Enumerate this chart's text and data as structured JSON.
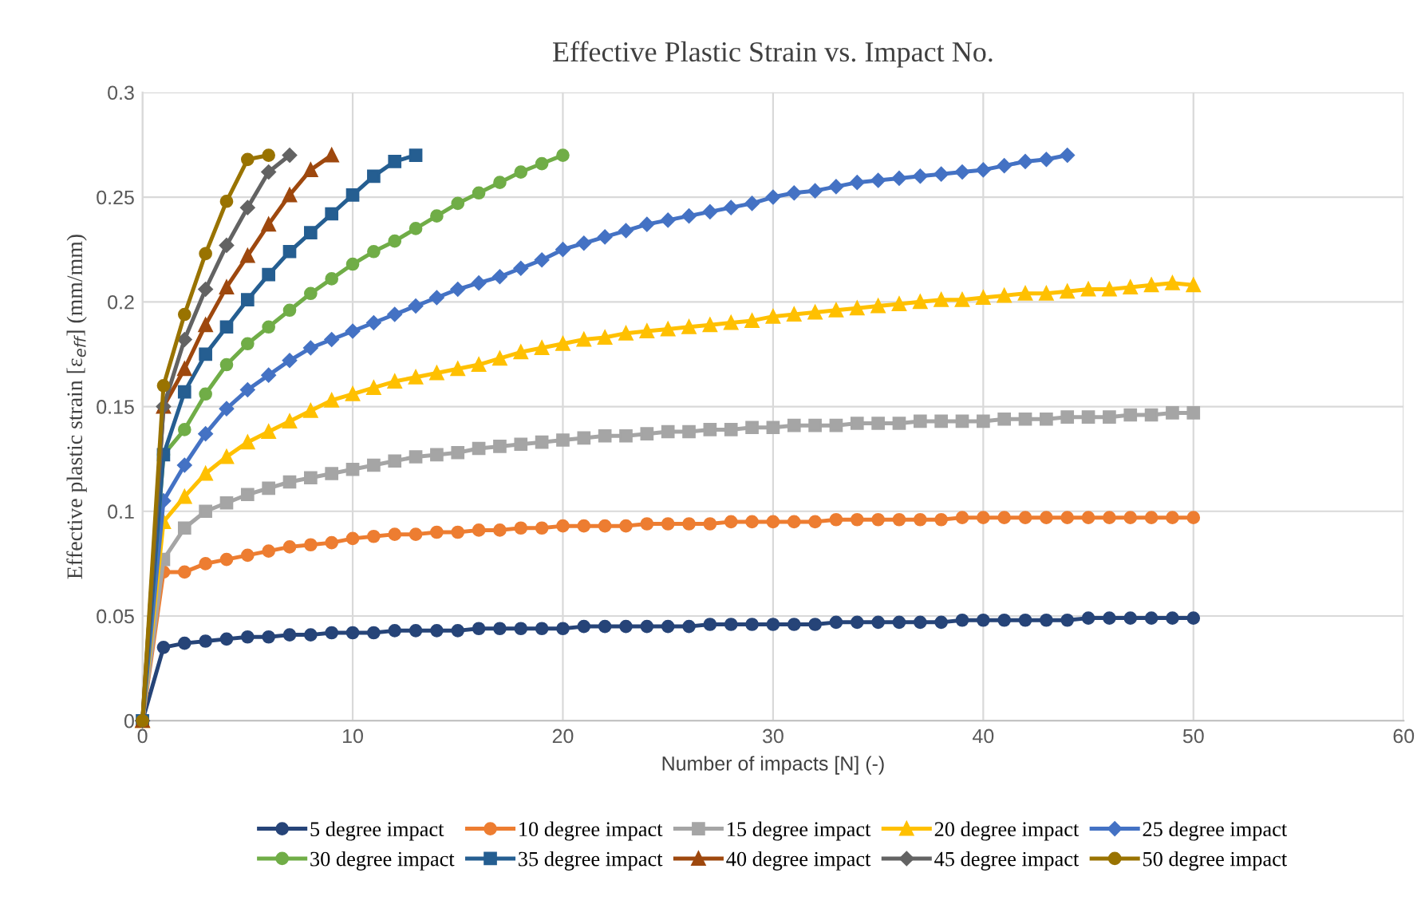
{
  "chart_data": {
    "type": "line",
    "title": "Effective Plastic Strain vs. Impact No.",
    "xlabel": "Number of impacts [N] (-)",
    "ylabel": "Effective plastic strain [ε$_{eff}$] (mm/mm)",
    "xlim": [
      0,
      60
    ],
    "xticks": [
      0,
      10,
      20,
      30,
      40,
      50,
      60
    ],
    "ylim": [
      0,
      0.3
    ],
    "yticks": [
      0,
      0.05,
      0.1,
      0.15,
      0.2,
      0.25,
      0.3
    ],
    "grid": true,
    "legend": "bottom",
    "line_style": "solid",
    "series": [
      {
        "name": "5 degree impact",
        "color": "#264478",
        "marker": "circle",
        "x": [
          0,
          1,
          2,
          3,
          4,
          5,
          6,
          7,
          8,
          9,
          10,
          11,
          12,
          13,
          14,
          15,
          16,
          17,
          18,
          19,
          20,
          21,
          22,
          23,
          24,
          25,
          26,
          27,
          28,
          29,
          30,
          31,
          32,
          33,
          34,
          35,
          36,
          37,
          38,
          39,
          40,
          41,
          42,
          43,
          44,
          45,
          46,
          47,
          48,
          49,
          50
        ],
        "values": [
          0,
          0.035,
          0.037,
          0.038,
          0.039,
          0.04,
          0.04,
          0.041,
          0.041,
          0.042,
          0.042,
          0.042,
          0.043,
          0.043,
          0.043,
          0.043,
          0.044,
          0.044,
          0.044,
          0.044,
          0.044,
          0.045,
          0.045,
          0.045,
          0.045,
          0.045,
          0.045,
          0.046,
          0.046,
          0.046,
          0.046,
          0.046,
          0.046,
          0.047,
          0.047,
          0.047,
          0.047,
          0.047,
          0.047,
          0.048,
          0.048,
          0.048,
          0.048,
          0.048,
          0.048,
          0.049,
          0.049,
          0.049,
          0.049,
          0.049,
          0.049
        ]
      },
      {
        "name": "10 degree impact",
        "color": "#ed7d31",
        "marker": "circle",
        "x": [
          0,
          1,
          2,
          3,
          4,
          5,
          6,
          7,
          8,
          9,
          10,
          11,
          12,
          13,
          14,
          15,
          16,
          17,
          18,
          19,
          20,
          21,
          22,
          23,
          24,
          25,
          26,
          27,
          28,
          29,
          30,
          31,
          32,
          33,
          34,
          35,
          36,
          37,
          38,
          39,
          40,
          41,
          42,
          43,
          44,
          45,
          46,
          47,
          48,
          49,
          50
        ],
        "values": [
          0,
          0.071,
          0.071,
          0.075,
          0.077,
          0.079,
          0.081,
          0.083,
          0.084,
          0.085,
          0.087,
          0.088,
          0.089,
          0.089,
          0.09,
          0.09,
          0.091,
          0.091,
          0.092,
          0.092,
          0.093,
          0.093,
          0.093,
          0.093,
          0.094,
          0.094,
          0.094,
          0.094,
          0.095,
          0.095,
          0.095,
          0.095,
          0.095,
          0.096,
          0.096,
          0.096,
          0.096,
          0.096,
          0.096,
          0.097,
          0.097,
          0.097,
          0.097,
          0.097,
          0.097,
          0.097,
          0.097,
          0.097,
          0.097,
          0.097,
          0.097
        ]
      },
      {
        "name": "15 degree impact",
        "color": "#a5a5a5",
        "marker": "square",
        "x": [
          0,
          1,
          2,
          3,
          4,
          5,
          6,
          7,
          8,
          9,
          10,
          11,
          12,
          13,
          14,
          15,
          16,
          17,
          18,
          19,
          20,
          21,
          22,
          23,
          24,
          25,
          26,
          27,
          28,
          29,
          30,
          31,
          32,
          33,
          34,
          35,
          36,
          37,
          38,
          39,
          40,
          41,
          42,
          43,
          44,
          45,
          46,
          47,
          48,
          49,
          50
        ],
        "values": [
          0,
          0.077,
          0.092,
          0.1,
          0.104,
          0.108,
          0.111,
          0.114,
          0.116,
          0.118,
          0.12,
          0.122,
          0.124,
          0.126,
          0.127,
          0.128,
          0.13,
          0.131,
          0.132,
          0.133,
          0.134,
          0.135,
          0.136,
          0.136,
          0.137,
          0.138,
          0.138,
          0.139,
          0.139,
          0.14,
          0.14,
          0.141,
          0.141,
          0.141,
          0.142,
          0.142,
          0.142,
          0.143,
          0.143,
          0.143,
          0.143,
          0.144,
          0.144,
          0.144,
          0.145,
          0.145,
          0.145,
          0.146,
          0.146,
          0.147,
          0.147
        ]
      },
      {
        "name": "20 degree impact",
        "color": "#ffc000",
        "marker": "triangle",
        "x": [
          0,
          1,
          2,
          3,
          4,
          5,
          6,
          7,
          8,
          9,
          10,
          11,
          12,
          13,
          14,
          15,
          16,
          17,
          18,
          19,
          20,
          21,
          22,
          23,
          24,
          25,
          26,
          27,
          28,
          29,
          30,
          31,
          32,
          33,
          34,
          35,
          36,
          37,
          38,
          39,
          40,
          41,
          42,
          43,
          44,
          45,
          46,
          47,
          48,
          49,
          50
        ],
        "values": [
          0,
          0.095,
          0.107,
          0.118,
          0.126,
          0.133,
          0.138,
          0.143,
          0.148,
          0.153,
          0.156,
          0.159,
          0.162,
          0.164,
          0.166,
          0.168,
          0.17,
          0.173,
          0.176,
          0.178,
          0.18,
          0.182,
          0.183,
          0.185,
          0.186,
          0.187,
          0.188,
          0.189,
          0.19,
          0.191,
          0.193,
          0.194,
          0.195,
          0.196,
          0.197,
          0.198,
          0.199,
          0.2,
          0.201,
          0.201,
          0.202,
          0.203,
          0.204,
          0.204,
          0.205,
          0.206,
          0.206,
          0.207,
          0.208,
          0.209,
          0.208
        ]
      },
      {
        "name": "25 degree impact",
        "color": "#4472c4",
        "marker": "diamond",
        "x": [
          0,
          1,
          2,
          3,
          4,
          5,
          6,
          7,
          8,
          9,
          10,
          11,
          12,
          13,
          14,
          15,
          16,
          17,
          18,
          19,
          20,
          21,
          22,
          23,
          24,
          25,
          26,
          27,
          28,
          29,
          30,
          31,
          32,
          33,
          34,
          35,
          36,
          37,
          38,
          39,
          40,
          41,
          42,
          43,
          44
        ],
        "values": [
          0,
          0.105,
          0.122,
          0.137,
          0.149,
          0.158,
          0.165,
          0.172,
          0.178,
          0.182,
          0.186,
          0.19,
          0.194,
          0.198,
          0.202,
          0.206,
          0.209,
          0.212,
          0.216,
          0.22,
          0.225,
          0.228,
          0.231,
          0.234,
          0.237,
          0.239,
          0.241,
          0.243,
          0.245,
          0.247,
          0.25,
          0.252,
          0.253,
          0.255,
          0.257,
          0.258,
          0.259,
          0.26,
          0.261,
          0.262,
          0.263,
          0.265,
          0.267,
          0.268,
          0.27
        ]
      },
      {
        "name": "30 degree impact",
        "color": "#70ad47",
        "marker": "circle",
        "x": [
          0,
          1,
          2,
          3,
          4,
          5,
          6,
          7,
          8,
          9,
          10,
          11,
          12,
          13,
          14,
          15,
          16,
          17,
          18,
          19,
          20
        ],
        "values": [
          0,
          0.127,
          0.139,
          0.156,
          0.17,
          0.18,
          0.188,
          0.196,
          0.204,
          0.211,
          0.218,
          0.224,
          0.229,
          0.235,
          0.241,
          0.247,
          0.252,
          0.257,
          0.262,
          0.266,
          0.27
        ]
      },
      {
        "name": "35 degree impact",
        "color": "#255e91",
        "marker": "square",
        "x": [
          0,
          1,
          2,
          3,
          4,
          5,
          6,
          7,
          8,
          9,
          10,
          11,
          12,
          13
        ],
        "values": [
          0,
          0.127,
          0.157,
          0.175,
          0.188,
          0.201,
          0.213,
          0.224,
          0.233,
          0.242,
          0.251,
          0.26,
          0.267,
          0.27
        ]
      },
      {
        "name": "40 degree impact",
        "color": "#9e480e",
        "marker": "triangle",
        "x": [
          0,
          1,
          2,
          3,
          4,
          5,
          6,
          7,
          8,
          9
        ],
        "values": [
          0,
          0.15,
          0.168,
          0.189,
          0.207,
          0.222,
          0.237,
          0.251,
          0.263,
          0.27
        ]
      },
      {
        "name": "45 degree impact",
        "color": "#636363",
        "marker": "diamond",
        "x": [
          0,
          1,
          2,
          3,
          4,
          5,
          6,
          7
        ],
        "values": [
          0,
          0.15,
          0.182,
          0.206,
          0.227,
          0.245,
          0.262,
          0.27
        ]
      },
      {
        "name": "50 degree impact",
        "color": "#997300",
        "marker": "circle",
        "x": [
          0,
          1,
          2,
          3,
          4,
          5,
          6
        ],
        "values": [
          0,
          0.16,
          0.194,
          0.223,
          0.248,
          0.268,
          0.27
        ]
      }
    ]
  }
}
